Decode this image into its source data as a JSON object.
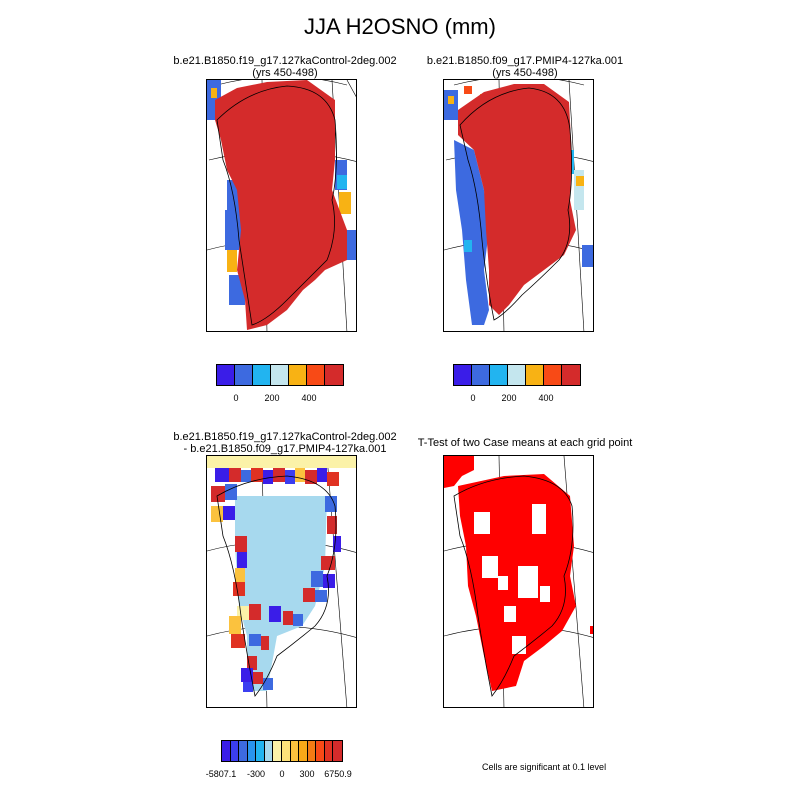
{
  "title": "JJA H2OSNO (mm)",
  "panels": [
    {
      "title_line1": "b.e21.B1850.f19_g17.127kaControl-2deg.002",
      "title_line2": "(yrs 450-498)"
    },
    {
      "title_line1": "b.e21.B1850.f09_g17.PMIP4-127ka.001",
      "title_line2": "(yrs 450-498)"
    },
    {
      "title_line1": "b.e21.B1850.f19_g17.127kaControl-2deg.002",
      "title_line2": "- b.e21.B1850.f09_g17.PMIP4-127ka.001"
    },
    {
      "title_line1": "T-Test of two Case means at each grid point",
      "title_line2": ""
    }
  ],
  "colorbars": {
    "absolute": {
      "colors": [
        "#3a1de8",
        "#3d6ae0",
        "#22b4f0",
        "#c4e6ee",
        "#f8b214",
        "#f84a16",
        "#d42b2b"
      ],
      "tick_labels": [
        "0",
        "200",
        "400"
      ]
    },
    "difference": {
      "colors": [
        "#3a1de8",
        "#3b3ef0",
        "#3d6ae0",
        "#2994ee",
        "#22b4f0",
        "#a7d9ee",
        "#fbf2a8",
        "#fde27a",
        "#fbc23e",
        "#f8a818",
        "#f47b14",
        "#f84a16",
        "#e03222",
        "#d42b2b"
      ],
      "tick_labels": [
        "-5807.1",
        "-300",
        "0",
        "300",
        "6750.9"
      ]
    }
  },
  "significance_note": "Cells are significant at 0.1 level",
  "chart_data": [
    {
      "type": "heatmap",
      "title": "b.e21.B1850.f19_g17.127kaControl-2deg.002 (yrs 450-498)",
      "variable": "JJA H2OSNO (mm)",
      "region": "Greenland",
      "dominant_value": "> 500 (most of Greenland)",
      "colorbar_ticks": [
        0,
        200,
        400
      ]
    },
    {
      "type": "heatmap",
      "title": "b.e21.B1850.f09_g17.PMIP4-127ka.001 (yrs 450-498)",
      "variable": "JJA H2OSNO (mm)",
      "region": "Greenland",
      "dominant_value": "> 500 (north and central); < 200 along southwest margin",
      "colorbar_ticks": [
        0,
        200,
        400
      ]
    },
    {
      "type": "heatmap",
      "title": "Difference (Control - PMIP4)",
      "variable": "JJA H2OSNO (mm)",
      "region": "Greenland",
      "colorbar_ticks": [
        -5807.1,
        -300,
        0,
        300,
        6750.9
      ]
    },
    {
      "type": "heatmap",
      "title": "T-Test of two Case means at each grid point",
      "legend": "Cells are significant at 0.1 level",
      "significant_color": "#ff0000"
    }
  ]
}
